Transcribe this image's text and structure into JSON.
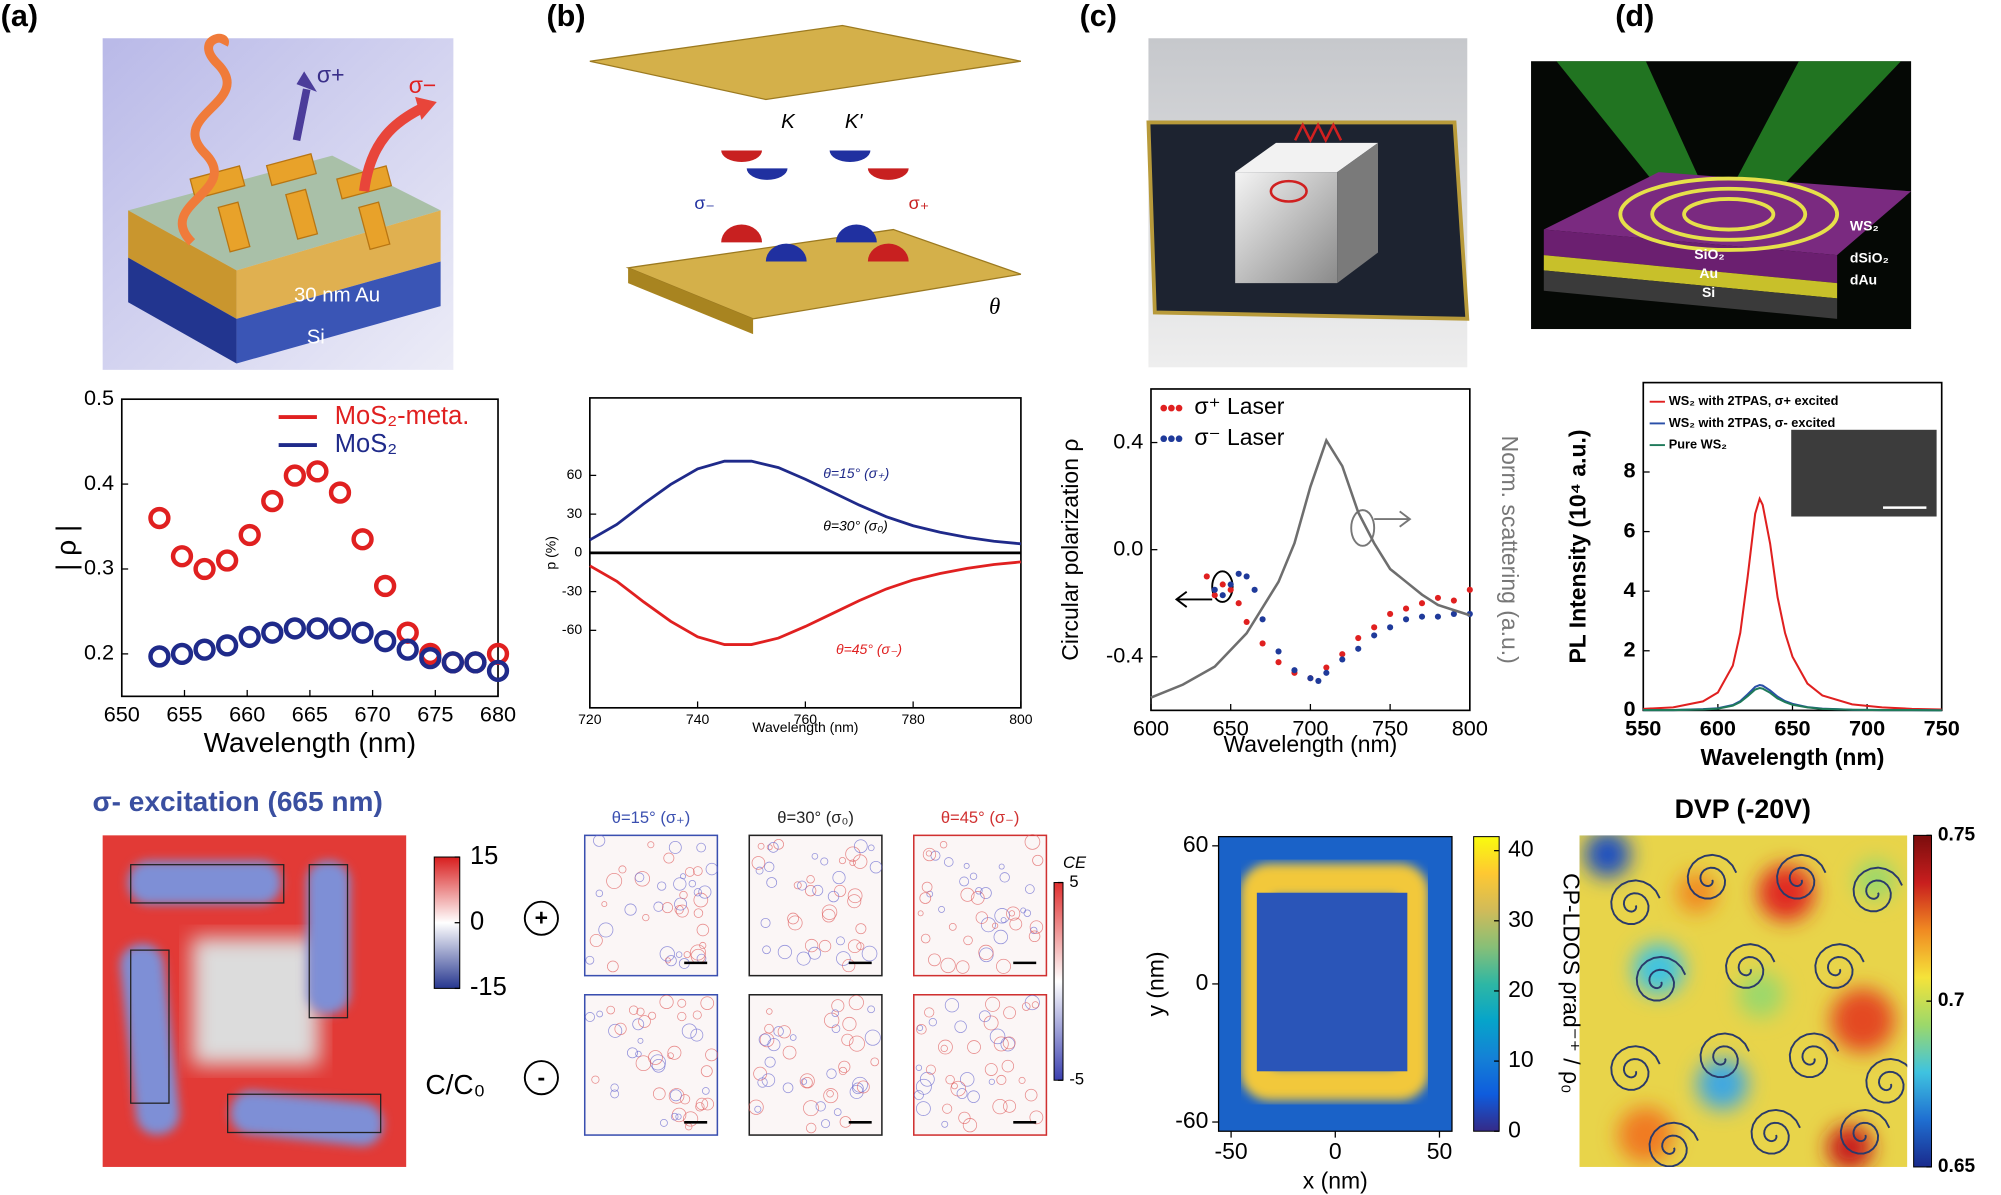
{
  "panel_labels": [
    "(a)",
    "(b)",
    "(c)",
    "(d)"
  ],
  "illustrations": {
    "a": {
      "labels": [
        "σ+",
        "σ−",
        "30 nm Au",
        "Si"
      ]
    },
    "b": {
      "labels": [
        "K",
        "K'",
        "σ₋",
        "σ₊",
        "θ"
      ]
    },
    "d": {
      "labels": [
        "WS₂",
        "SiO₂",
        "Au",
        "Si",
        "dSiO₂",
        "dAu"
      ]
    }
  },
  "chart_data": [
    {
      "type": "scatter",
      "xlabel": "Wavelength (nm)",
      "ylabel": "| ρ |",
      "x": [
        653,
        654.8,
        656.6,
        658.4,
        660.2,
        662,
        663.8,
        665.6,
        667.4,
        669.2,
        671,
        672.8,
        674.6,
        676.4,
        678.2,
        680
      ],
      "series": [
        {
          "name": "MoS₂-meta.",
          "color": "#e02020",
          "values": [
            0.36,
            0.315,
            0.3,
            0.31,
            0.34,
            0.38,
            0.41,
            0.415,
            0.39,
            0.335,
            0.28,
            0.225,
            0.2,
            0.19,
            0.19,
            0.2
          ]
        },
        {
          "name": "MoS₂",
          "color": "#1f2a8a",
          "values": [
            0.197,
            0.2,
            0.205,
            0.21,
            0.22,
            0.225,
            0.23,
            0.23,
            0.23,
            0.225,
            0.215,
            0.205,
            0.195,
            0.19,
            0.19,
            0.18
          ]
        }
      ],
      "xlim": [
        650,
        680
      ],
      "xticks": [
        650,
        655,
        660,
        665,
        670,
        675,
        680
      ],
      "ylim": [
        0.15,
        0.5
      ],
      "yticks": [
        0.2,
        0.3,
        0.4,
        0.5
      ]
    },
    {
      "type": "line",
      "xlabel": "Wavelength (nm)",
      "ylabel": "p (%)",
      "x": [
        720,
        725,
        730,
        735,
        740,
        745,
        750,
        755,
        760,
        765,
        770,
        775,
        780,
        785,
        790,
        795,
        800
      ],
      "series": [
        {
          "name": "θ=15° (σ₊)",
          "color": "#1f2a8a",
          "values": [
            10,
            22,
            38,
            53,
            65,
            71,
            71,
            66,
            57,
            47,
            37,
            28,
            21,
            16,
            12,
            9,
            7
          ]
        },
        {
          "name": "θ=30° (σ₀)",
          "color": "#000000",
          "values": [
            0,
            0,
            0,
            0,
            0,
            0,
            0,
            0,
            0,
            0,
            0,
            0,
            0,
            0,
            0,
            0,
            0
          ]
        },
        {
          "name": "θ=45° (σ₋)",
          "color": "#e02020",
          "values": [
            -10,
            -22,
            -38,
            -53,
            -65,
            -71,
            -71,
            -66,
            -57,
            -47,
            -37,
            -28,
            -21,
            -16,
            -12,
            -9,
            -7
          ]
        }
      ],
      "xlim": [
        720,
        800
      ],
      "xticks": [
        720,
        740,
        760,
        780,
        800
      ],
      "ylim": [
        -120,
        120
      ],
      "yticks": [
        -60,
        -30,
        0,
        30,
        60
      ]
    },
    {
      "type": "combo",
      "xlabel": "Wavelength (nm)",
      "ylabel": "Circular polarization ρ",
      "y2label": "Norm. scattering (a.u.)",
      "series": [
        {
          "name": "σ⁺ Laser",
          "color": "#e02020",
          "type": "scatter",
          "x": [
            635,
            640,
            645,
            650,
            655,
            660,
            670,
            680,
            690,
            700,
            710,
            720,
            730,
            740,
            750,
            760,
            770,
            780,
            790,
            800
          ],
          "values": [
            -0.1,
            -0.17,
            -0.13,
            -0.15,
            -0.2,
            -0.27,
            -0.35,
            -0.42,
            -0.46,
            -0.48,
            -0.44,
            -0.39,
            -0.33,
            -0.29,
            -0.24,
            -0.22,
            -0.2,
            -0.18,
            -0.19,
            -0.15
          ]
        },
        {
          "name": "σ⁻ Laser",
          "color": "#1f3a9a",
          "type": "scatter",
          "x": [
            640,
            645,
            650,
            655,
            660,
            665,
            670,
            680,
            690,
            700,
            705,
            710,
            720,
            730,
            740,
            750,
            760,
            770,
            780,
            790,
            800
          ],
          "values": [
            -0.15,
            -0.17,
            -0.13,
            -0.09,
            -0.1,
            -0.15,
            -0.26,
            -0.38,
            -0.45,
            -0.48,
            -0.49,
            -0.46,
            -0.41,
            -0.37,
            -0.32,
            -0.29,
            -0.26,
            -0.25,
            -0.25,
            -0.24,
            -0.24
          ]
        },
        {
          "name": "Norm. scattering",
          "color": "#6e6e6e",
          "type": "line",
          "axis": "y2",
          "x": [
            600,
            620,
            640,
            660,
            680,
            690,
            700,
            710,
            720,
            730,
            740,
            750,
            760,
            770,
            780,
            790,
            800
          ],
          "values": [
            0,
            0.05,
            0.12,
            0.25,
            0.45,
            0.6,
            0.82,
            1.0,
            0.9,
            0.72,
            0.6,
            0.5,
            0.45,
            0.4,
            0.36,
            0.34,
            0.32
          ]
        }
      ],
      "xlim": [
        600,
        800
      ],
      "xticks": [
        600,
        650,
        700,
        750,
        800
      ],
      "ylim": [
        -0.6,
        0.6
      ],
      "yticks": [
        -0.4,
        {
          "value": 0,
          "label": "0.0"
        },
        0.4
      ],
      "y2lim": [
        -0.05,
        1.2
      ]
    },
    {
      "type": "line",
      "xlabel": "Wavelength (nm)",
      "ylabel": "PL Intensity  (10⁴ a.u.)",
      "x": [
        550,
        570,
        590,
        600,
        610,
        615,
        620,
        625,
        628,
        630,
        635,
        640,
        645,
        650,
        660,
        670,
        690,
        710,
        730,
        750
      ],
      "series": [
        {
          "name": "WS₂ with 2TPAS, σ+ excited",
          "color": "#e02020",
          "values": [
            0.05,
            0.1,
            0.3,
            0.6,
            1.5,
            2.6,
            4.5,
            6.6,
            7.1,
            6.9,
            5.6,
            3.8,
            2.6,
            1.8,
            0.9,
            0.5,
            0.2,
            0.1,
            0.05,
            0.03
          ]
        },
        {
          "name": "WS₂ with 2TPAS, σ- excited",
          "color": "#2a4fa8",
          "values": [
            0.01,
            0.01,
            0.04,
            0.07,
            0.18,
            0.31,
            0.54,
            0.79,
            0.85,
            0.83,
            0.67,
            0.46,
            0.31,
            0.22,
            0.11,
            0.06,
            0.02,
            0.01,
            0.01,
            0
          ]
        },
        {
          "name": "Pure WS₂",
          "color": "#1f7a5a",
          "values": [
            0.01,
            0.01,
            0.03,
            0.06,
            0.16,
            0.28,
            0.48,
            0.7,
            0.75,
            0.73,
            0.59,
            0.4,
            0.28,
            0.19,
            0.1,
            0.05,
            0.02,
            0.01,
            0.01,
            0
          ]
        }
      ],
      "xlim": [
        550,
        750
      ],
      "xticks": [
        550,
        600,
        650,
        700,
        750
      ],
      "ylim": [
        0,
        11
      ],
      "yticks": [
        0,
        2,
        4,
        6,
        8
      ]
    },
    {
      "type": "heatmap",
      "title": "σ- excitation (665 nm)",
      "clim": [
        -15,
        15
      ],
      "cticks": [
        -15,
        0,
        15
      ],
      "colorbar_label": "C/C₀",
      "colormap": [
        "#27378f",
        "#ffffff",
        "#d81e1e"
      ]
    },
    {
      "type": "heatmap",
      "panel_titles": [
        "θ=15° (σ₊)",
        "θ=30° (σ₀)",
        "θ=45° (σ₋)"
      ],
      "row_labels": [
        "+",
        "-"
      ],
      "clim": [
        -5,
        5
      ],
      "cticks": [
        -5,
        5
      ],
      "colorbar_label": "CE",
      "colormap": [
        "#3a3fb0",
        "#ffffff",
        "#e03030"
      ]
    },
    {
      "type": "heatmap",
      "xlabel": "x (nm)",
      "ylabel": "y (nm)",
      "xlim": [
        -56,
        56
      ],
      "xticks": [
        -50,
        0,
        50
      ],
      "ylim": [
        -64,
        64
      ],
      "yticks": [
        -60,
        0,
        60
      ],
      "clim": [
        0,
        42
      ],
      "cticks": [
        0,
        10,
        20,
        30,
        40
      ],
      "colorbar_label": "CP-LDOS ρrad⁻⁺ / ρ₀",
      "colormap": [
        "#352a87",
        "#0f5cdd",
        "#1481d6",
        "#06a4ca",
        "#2eb7a4",
        "#87bf77",
        "#d1bb59",
        "#fec832",
        "#f9fb0e"
      ]
    },
    {
      "type": "heatmap",
      "title": "DVP (-20V)",
      "clim": [
        0.65,
        0.75
      ],
      "cticks": [
        0.65,
        0.7,
        0.75
      ],
      "colormap": [
        "#1a2a8c",
        "#1f6fd1",
        "#3fc3e0",
        "#9cd86a",
        "#f5e33a",
        "#f08a22",
        "#c81e1e",
        "#7a0d0d"
      ]
    }
  ]
}
